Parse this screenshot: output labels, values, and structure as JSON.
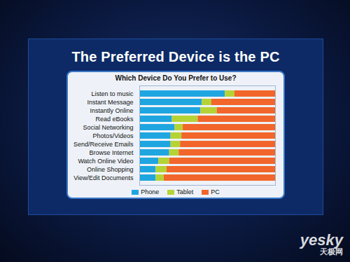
{
  "chart_data": {
    "type": "bar",
    "title": "The Preferred Device is the PC",
    "subtitle": "Which Device Do You Prefer to Use?",
    "orientation": "horizontal",
    "stacked": true,
    "tick_labels": "y",
    "grid": false,
    "legend": "bottom",
    "categories": [
      "Listen to music",
      "Instant Message",
      "Instantly Online",
      "Read eBooks",
      "Social Networking",
      "Photos/Videos",
      "Send/Receive Emails",
      "Browse Internet",
      "Watch Online Video",
      "Online Shopping",
      "View/Edit Documents"
    ],
    "series": [
      {
        "name": "Phone",
        "color": "#1fa6e0",
        "values": [
          63,
          46,
          45,
          24,
          26,
          23,
          23,
          22,
          14,
          12,
          12
        ]
      },
      {
        "name": "Tablet",
        "color": "#b5d334",
        "values": [
          7,
          7,
          12,
          19,
          6,
          8,
          7,
          7,
          8,
          8,
          6
        ]
      },
      {
        "name": "PC",
        "color": "#f2662b",
        "values": [
          30,
          47,
          43,
          57,
          68,
          69,
          70,
          71,
          78,
          80,
          82
        ]
      }
    ],
    "xlim": [
      0,
      100
    ],
    "xticks": [],
    "annotations": [
      "yesky",
      "天极网"
    ]
  }
}
